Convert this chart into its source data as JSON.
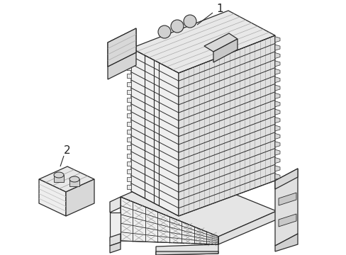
{
  "background_color": "#ffffff",
  "line_color": "#2a2a2a",
  "line_width": 0.9,
  "label1": "1",
  "label2": "2",
  "fig_width": 4.89,
  "fig_height": 3.6,
  "dpi": 100,
  "tower_lface": "#efefef",
  "tower_rface": "#d8d8d8",
  "tower_top": "#e8e8e8",
  "box_front": "#f0f0f0",
  "box_right": "#e0e0e0",
  "box_top": "#e5e5e5",
  "hatch_color": "#bbbbbb"
}
